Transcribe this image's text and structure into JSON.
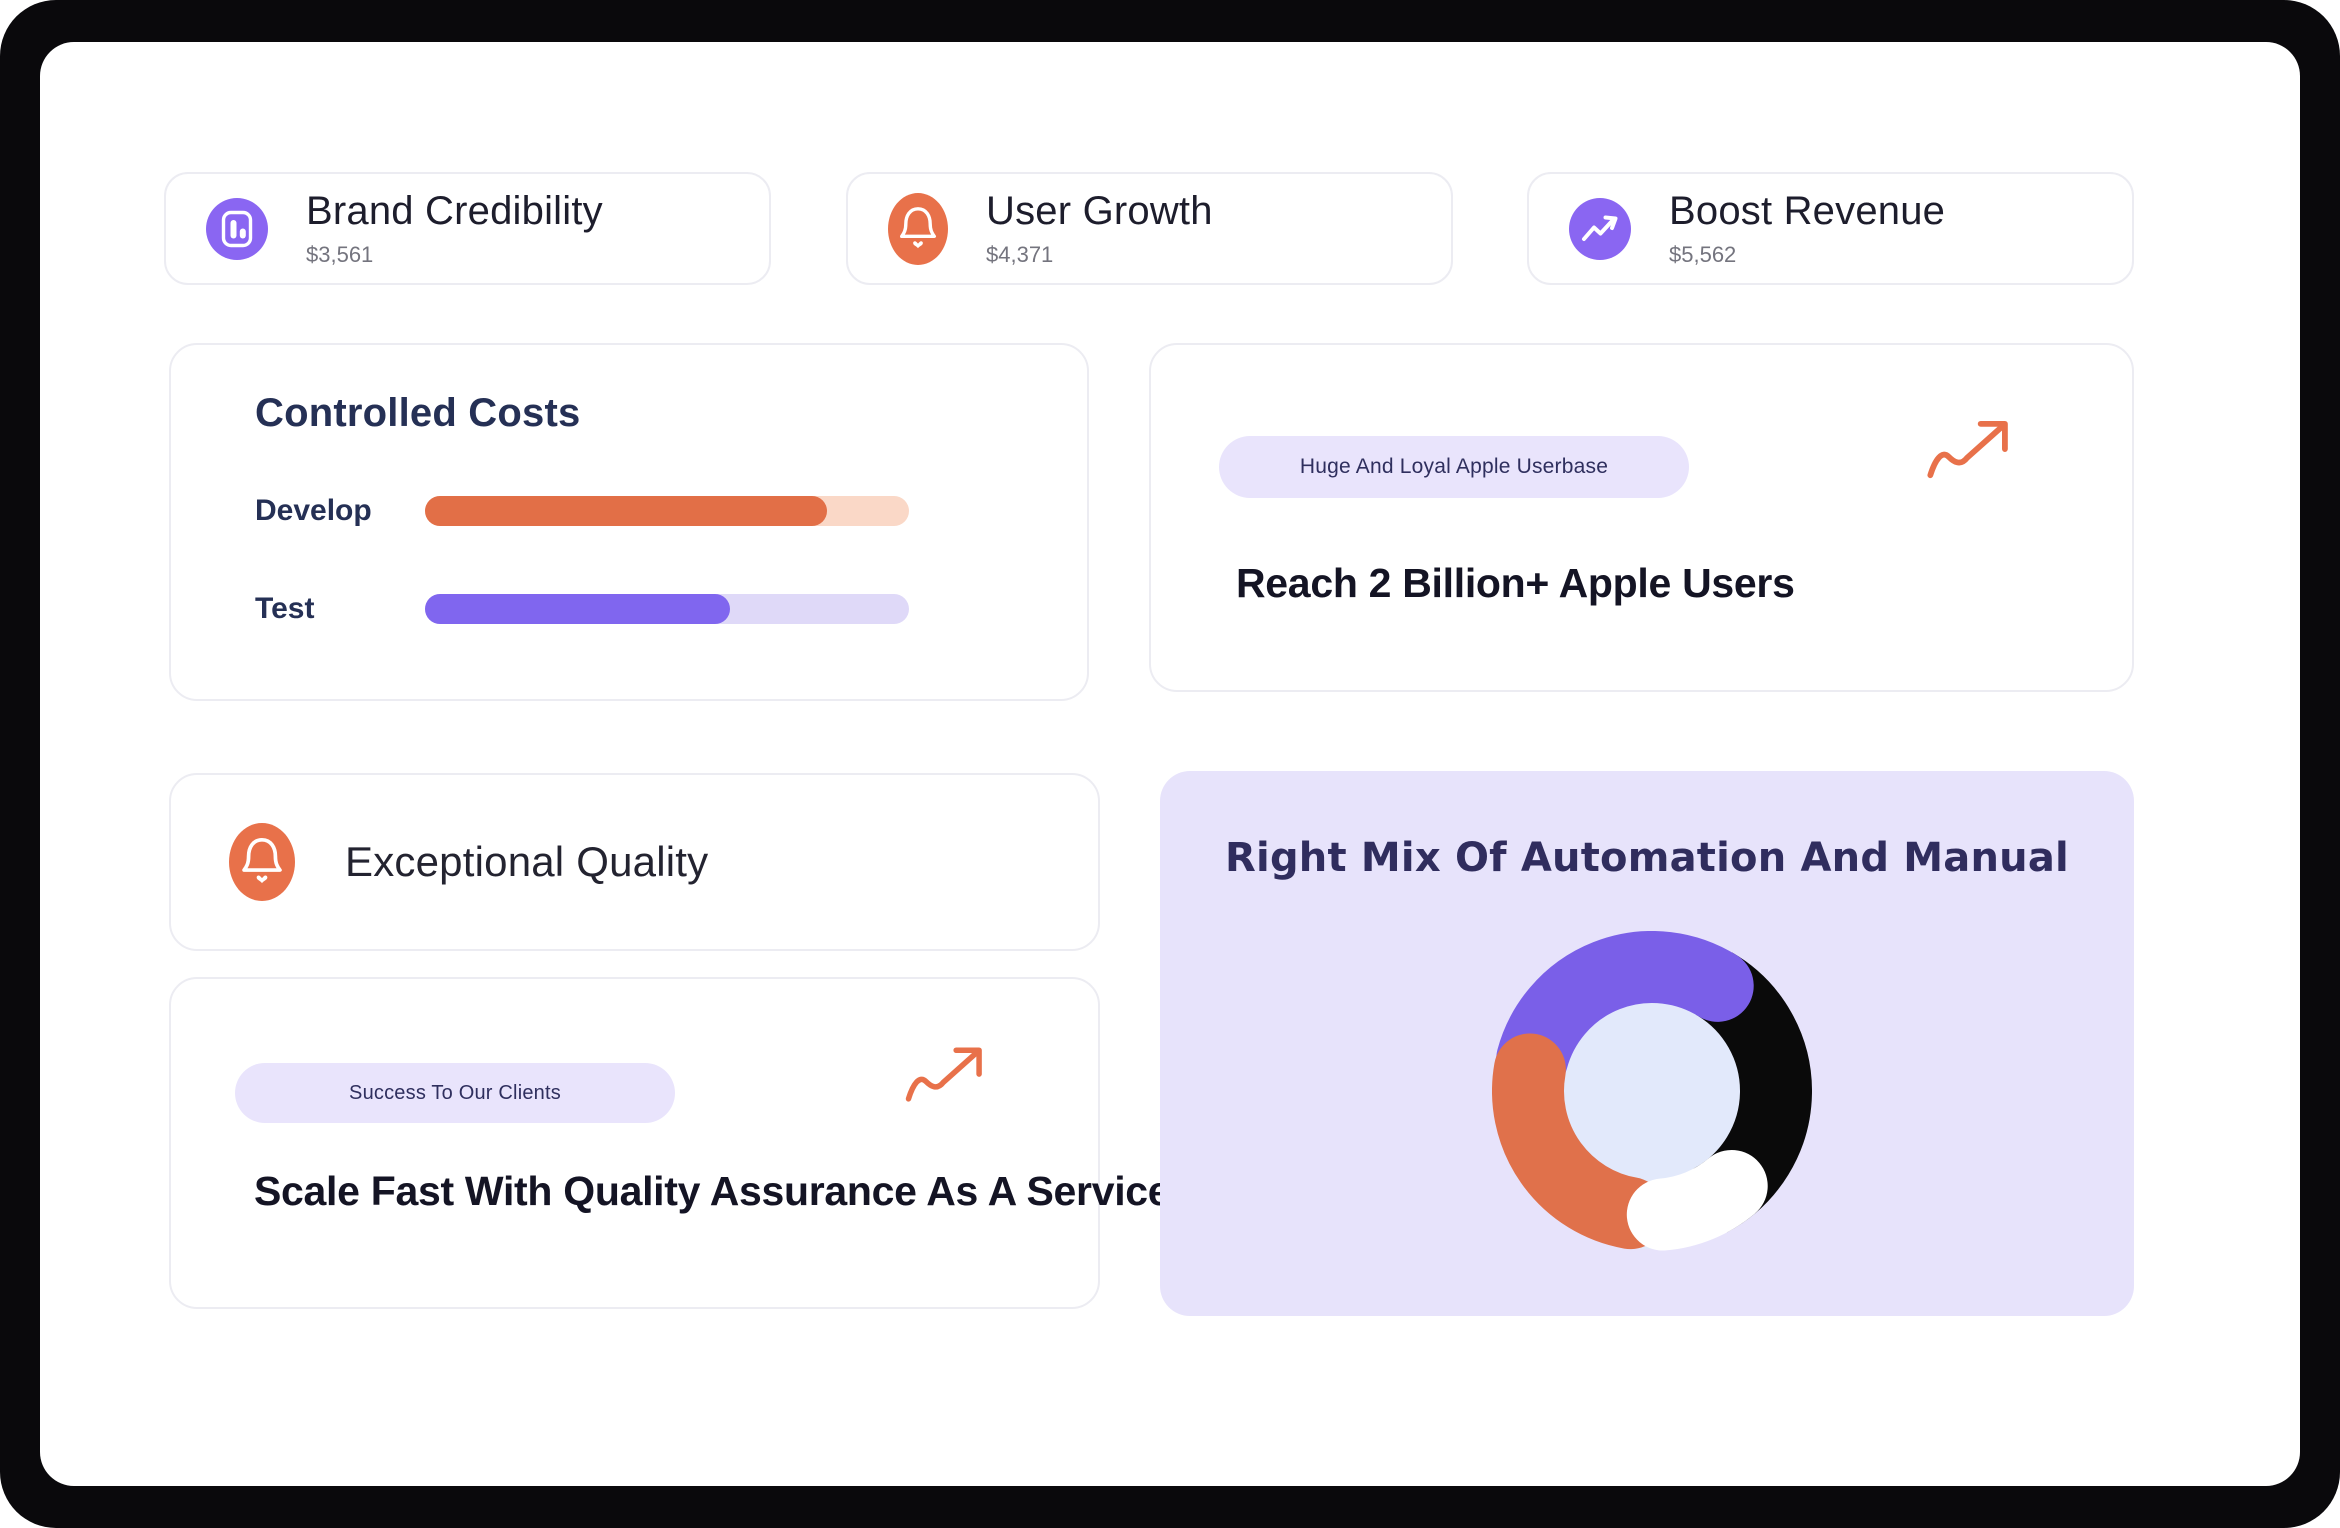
{
  "page": {
    "frame_color": "#0a090c",
    "panel_color": "#ffffff",
    "accent_orange": "#e8714a",
    "accent_purple": "#8a66f2",
    "pill_bg": "#e9e4fc",
    "heading_color": "#141424"
  },
  "stat_cards": [
    {
      "title": "Brand Credibility",
      "value": "$3,561",
      "icon": "bar-chart-icon",
      "icon_bg": "#8a66f2"
    },
    {
      "title": "User Growth",
      "value": "$4,371",
      "icon": "bell-icon",
      "icon_bg": "#e8714a"
    },
    {
      "title": "Boost Revenue",
      "value": "$5,562",
      "icon": "trending-up-icon",
      "icon_bg": "#8a66f2"
    }
  ],
  "controlled_costs_card": {
    "title": "Controlled Costs",
    "chart_data": {
      "type": "bar",
      "orientation": "horizontal",
      "categories": [
        "Develop",
        "Test"
      ],
      "values": [
        83,
        63
      ],
      "unit": "percent-of-track",
      "bar_colors": [
        "#e26f47",
        "#8066ef"
      ],
      "track_colors": [
        "#fad8c7",
        "#dfd9f8"
      ],
      "grid": false,
      "legend": false
    }
  },
  "apple_card": {
    "badge": "Huge  And Loyal Apple Userbase",
    "heading": "Reach 2 Billion+ Apple Users",
    "arrow_icon": "growth-arrow-icon",
    "arrow_color": "#e8714a"
  },
  "quality_card": {
    "title": "Exceptional Quality",
    "icon": "bell-icon",
    "icon_bg": "#e8714a"
  },
  "scale_card": {
    "badge": "Success To Our Clients",
    "heading": "Scale Fast With Quality Assurance As A Service",
    "arrow_icon": "growth-arrow-icon",
    "arrow_color": "#e8714a"
  },
  "mix_card": {
    "title": "Right Mix Of Automation And Manual",
    "bg": "#e7e3fb",
    "chart_data": {
      "type": "donut",
      "inner_color": "#e2e9fb",
      "legend": false,
      "segments": [
        {
          "name": "black",
          "color": "#0a0a0a",
          "start": 30,
          "end": 152,
          "cap": "butt",
          "percent": 31
        },
        {
          "name": "purple",
          "color": "#7a5fe8",
          "start": 285,
          "end": 392,
          "cap": "round",
          "percent": 30
        },
        {
          "name": "orange",
          "color": "#e0714b",
          "start": 190,
          "end": 280,
          "cap": "round",
          "percent": 27
        },
        {
          "name": "white",
          "color": "#ffffff",
          "start": 140,
          "end": 175,
          "cap": "round",
          "percent": 12
        }
      ]
    }
  }
}
